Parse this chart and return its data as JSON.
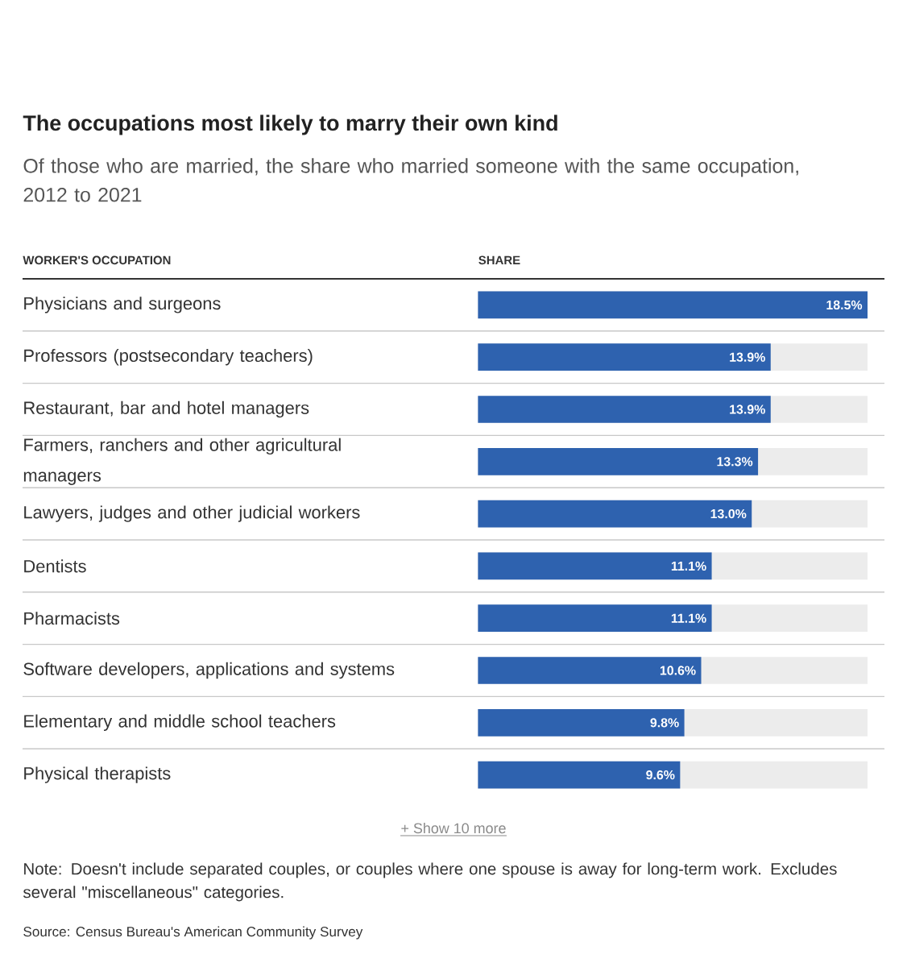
{
  "chart_data": {
    "type": "bar",
    "orientation": "horizontal",
    "title": "The occupations most likely to marry their own kind",
    "subtitle": "Of those who are married, the share who married someone with the same occupation, 2012 to 2021",
    "ylabel": "WORKER'S OCCUPATION",
    "xlabel": "SHARE",
    "categories": [
      "Physicians and surgeons",
      "Professors (postsecondary teachers)",
      "Restaurant, bar and hotel managers",
      "Farmers, ranchers and other agricultural managers",
      "Lawyers, judges and other judicial workers",
      "Dentists",
      "Pharmacists",
      "Software developers, applications and systems",
      "Elementary and middle school teachers",
      "Physical therapists"
    ],
    "values": [
      18.5,
      13.9,
      13.9,
      13.3,
      13.0,
      11.1,
      11.1,
      10.6,
      9.8,
      9.6
    ],
    "value_labels": [
      "18.5%",
      "13.9%",
      "13.9%",
      "13.3%",
      "13.0%",
      "11.1%",
      "11.1%",
      "10.6%",
      "9.8%",
      "9.6%"
    ],
    "color": "#2e62af",
    "xlim": [
      0,
      18.5
    ],
    "tick_labels": "y",
    "annotations": [
      "+ Show 10 more",
      "Note: Doesn't include separated couples, or couples where one spouse is away for long-term work. Excludes several \"miscellaneous\" categories.",
      "Source: Census Bureau's American Community Survey"
    ]
  }
}
